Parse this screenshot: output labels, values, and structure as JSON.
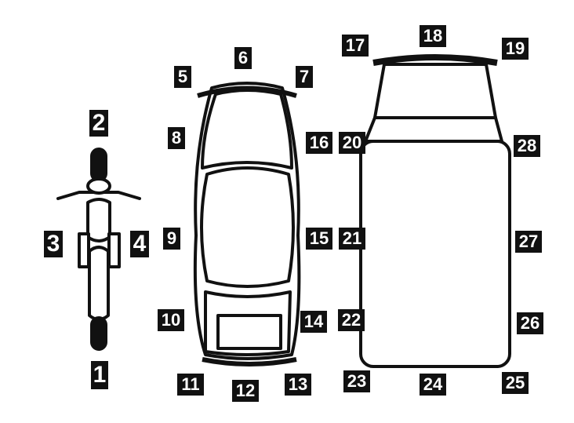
{
  "diagram": {
    "vehicles": [
      "motorcycle-top-view",
      "car-top-view",
      "truck-top-view"
    ],
    "labels": {
      "m1": "1",
      "m2": "2",
      "m3": "3",
      "m4": "4",
      "c5": "5",
      "c6": "6",
      "c7": "7",
      "c8": "8",
      "c9": "9",
      "c10": "10",
      "c11": "11",
      "c12": "12",
      "c13": "13",
      "c14": "14",
      "c15": "15",
      "c16": "16",
      "t17": "17",
      "t18": "18",
      "t19": "19",
      "t20": "20",
      "t21": "21",
      "t22": "22",
      "t23": "23",
      "t24": "24",
      "t25": "25",
      "t26": "26",
      "t27": "27",
      "t28": "28"
    },
    "colors": {
      "label_bg": "#111111",
      "label_fg": "#ffffff",
      "outline": "#111111"
    }
  }
}
